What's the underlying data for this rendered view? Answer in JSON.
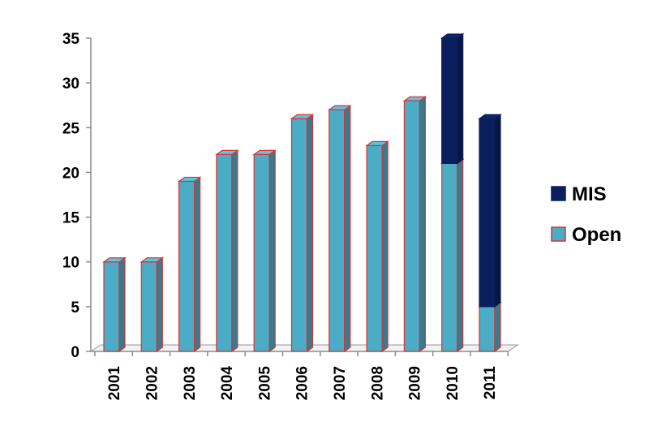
{
  "chart_data": {
    "type": "bar",
    "stacked": true,
    "three_d": true,
    "categories": [
      "2001",
      "2002",
      "2003",
      "2004",
      "2005",
      "2006",
      "2007",
      "2008",
      "2009",
      "2010",
      "2011"
    ],
    "series": [
      {
        "name": "Open",
        "values": [
          10,
          10,
          19,
          22,
          22,
          26,
          27,
          23,
          28,
          21,
          5
        ],
        "color": "#4bacc6",
        "stroke": "#e03030"
      },
      {
        "name": "MIS",
        "values": [
          0,
          0,
          0,
          0,
          0,
          0,
          0,
          0,
          0,
          14,
          21
        ],
        "color": "#0a1f5c",
        "stroke": "#0a1f5c"
      }
    ],
    "yticks": [
      0,
      5,
      10,
      15,
      20,
      25,
      30,
      35
    ],
    "ylim": [
      0,
      35
    ],
    "title": "",
    "xlabel": "",
    "ylabel": "",
    "grid": false,
    "legend": {
      "position": "right",
      "order": [
        "MIS",
        "Open"
      ]
    }
  }
}
